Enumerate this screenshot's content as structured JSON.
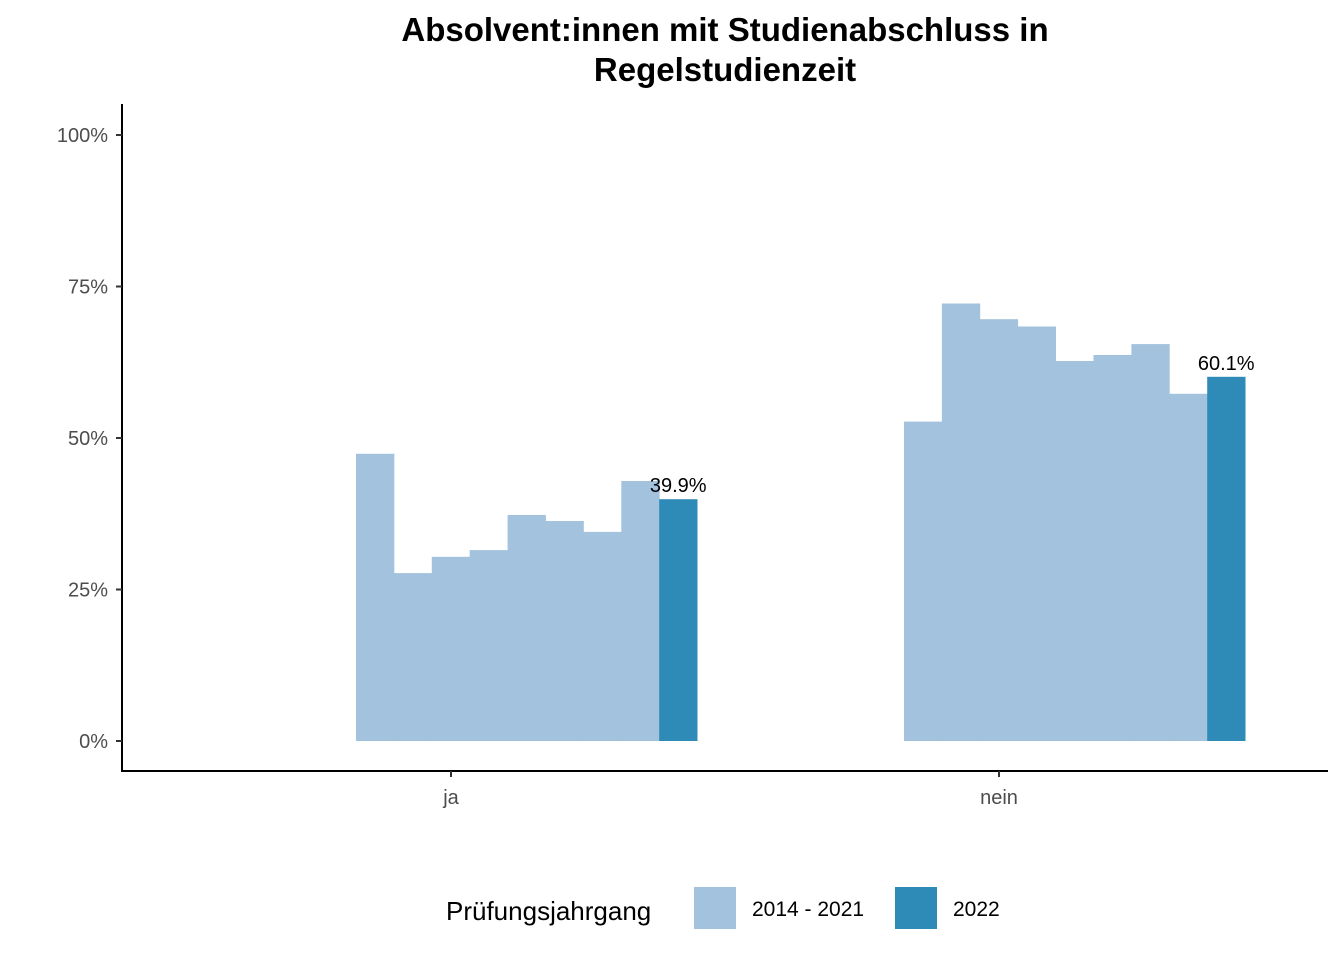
{
  "chart_data": {
    "type": "bar",
    "title_lines": [
      "Absolvent:innen mit Studienabschluss in",
      "Regelstudienzeit"
    ],
    "xlabel": "",
    "ylabel": "",
    "categories": [
      "ja",
      "nein"
    ],
    "ylim": [
      0,
      1.05
    ],
    "yticks": [
      0,
      0.25,
      0.5,
      0.75,
      1.0
    ],
    "ytick_labels": [
      "0%",
      "25%",
      "50%",
      "75%",
      "100%"
    ],
    "series": [
      {
        "name": "2014 - 2021",
        "color": "#a2c2dd",
        "values": {
          "ja": [
            0.474,
            0.277,
            0.304,
            0.315,
            0.373,
            0.363,
            0.345,
            0.429
          ],
          "nein": [
            0.527,
            0.722,
            0.696,
            0.684,
            0.627,
            0.637,
            0.655,
            0.573
          ]
        }
      },
      {
        "name": "2022",
        "color": "#2e8bb8",
        "values": {
          "ja": [
            0.399
          ],
          "nein": [
            0.601
          ]
        }
      }
    ],
    "data_labels": {
      "ja": "39.9%",
      "nein": "60.1%"
    },
    "legend": {
      "title": "Prüfungsjahrgang",
      "position": "bottom"
    },
    "grid": false
  }
}
